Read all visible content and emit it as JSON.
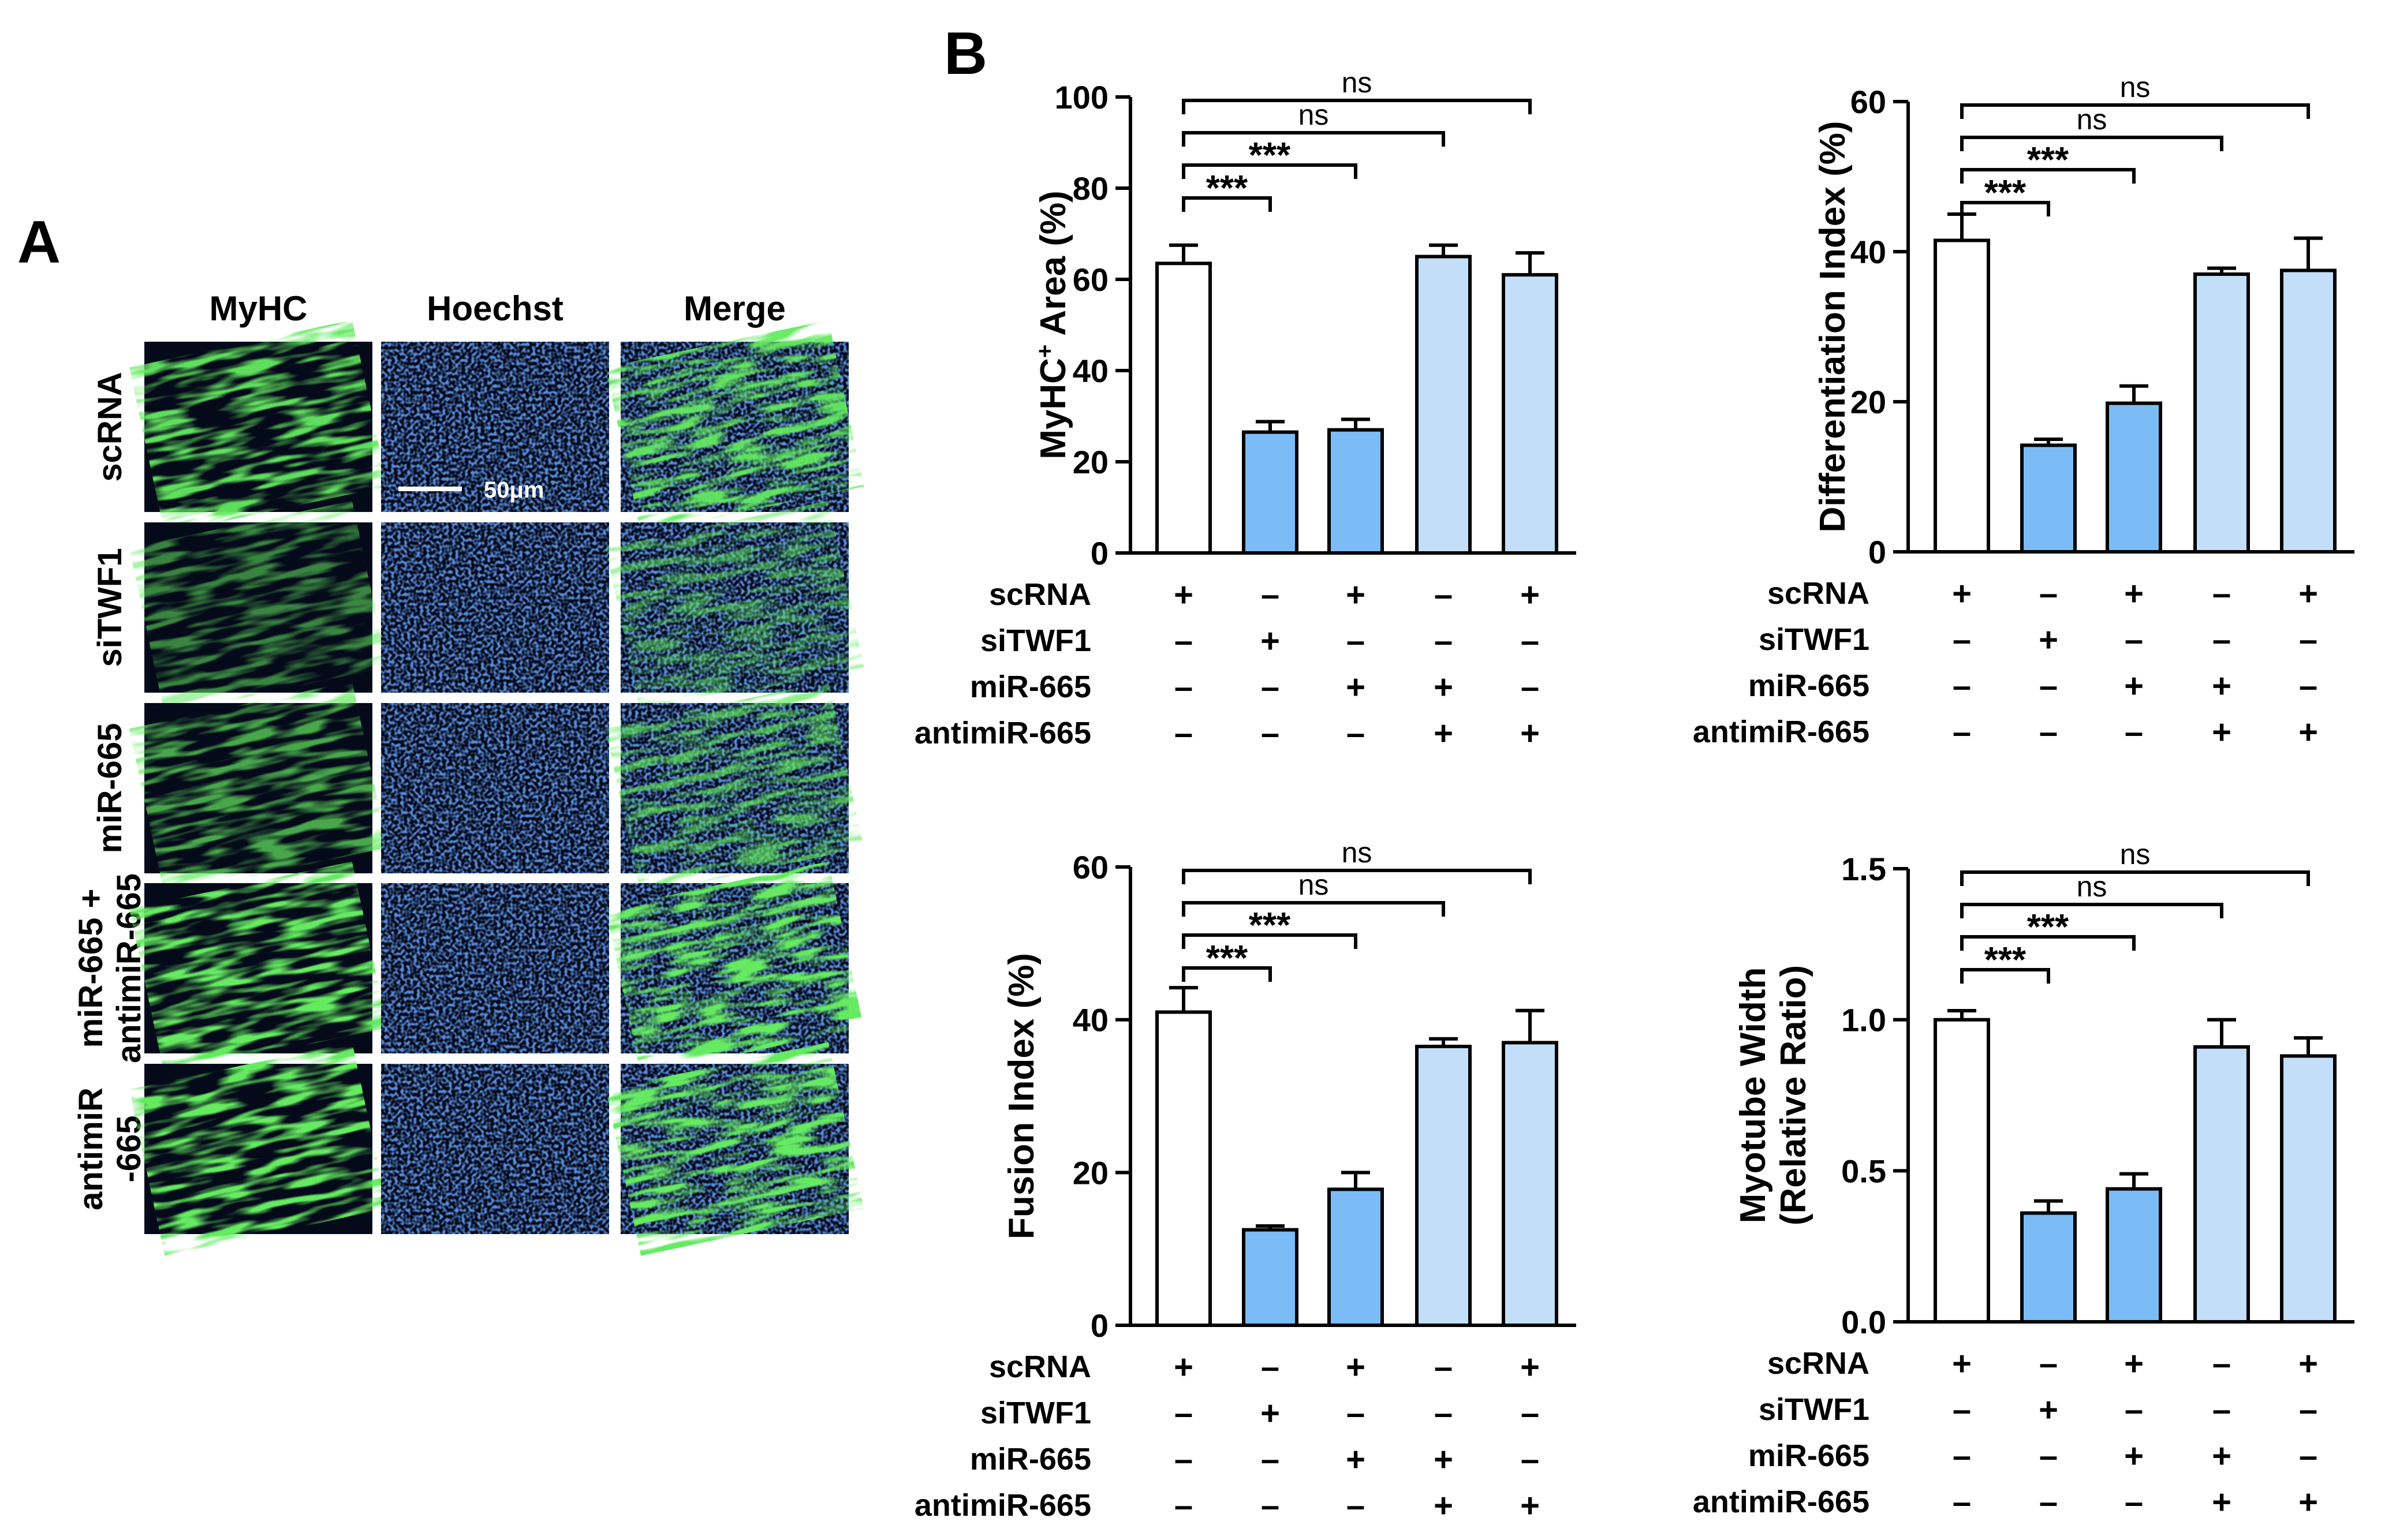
{
  "panel_a": {
    "letter": "A",
    "columns": [
      "MyHC",
      "Hoechst",
      "Merge"
    ],
    "rows": [
      {
        "lines": [
          "scRNA"
        ]
      },
      {
        "lines": [
          "siTWF1"
        ]
      },
      {
        "lines": [
          "miR-665"
        ]
      },
      {
        "lines": [
          "miR-665 +",
          "antimiR-665"
        ]
      },
      {
        "lines": [
          "antimiR",
          "-665"
        ]
      }
    ],
    "scale_bar_label": "50μm",
    "colors": {
      "myhc": "#22c51f",
      "hoechst": "#2a4fc8",
      "background": "#050a1a"
    }
  },
  "panel_b": {
    "letter": "B"
  },
  "conditions": {
    "labels": [
      "scRNA",
      "siTWF1",
      "miR-665",
      "antimiR-665"
    ],
    "signs": [
      [
        "+",
        "–",
        "+",
        "–",
        "+"
      ],
      [
        "–",
        "+",
        "–",
        "–",
        "–"
      ],
      [
        "–",
        "–",
        "+",
        "+",
        "–"
      ],
      [
        "–",
        "–",
        "–",
        "+",
        "+"
      ]
    ]
  },
  "colors": {
    "control": "#ffffff",
    "knockdown": "#7bbcf7",
    "rescue": "#c3def9",
    "stroke": "#000000"
  },
  "chart_data": [
    {
      "type": "bar",
      "ylabel_main": "MyHC",
      "ylabel_sup": "+",
      "ylabel_rest": " Area (%)",
      "ylim": [
        0,
        100
      ],
      "yticks": [
        "0",
        "20",
        "40",
        "60",
        "80",
        "100"
      ],
      "values": [
        63.5,
        26.5,
        27,
        65,
        61
      ],
      "errors": [
        4,
        2.3,
        2.3,
        2.5,
        4.8
      ],
      "bar_colors": [
        "control",
        "knockdown",
        "knockdown",
        "rescue",
        "rescue"
      ],
      "comparisons": [
        {
          "from": 1,
          "to": 2,
          "label": "***"
        },
        {
          "from": 1,
          "to": 3,
          "label": "***"
        },
        {
          "from": 1,
          "to": 4,
          "label": "ns"
        },
        {
          "from": 1,
          "to": 5,
          "label": "ns"
        }
      ]
    },
    {
      "type": "bar",
      "ylabel": "Differentiation Index (%)",
      "ylim": [
        0,
        60
      ],
      "yticks": [
        "0",
        "20",
        "40",
        "60"
      ],
      "values": [
        41.5,
        14.2,
        19.8,
        37,
        37.5
      ],
      "errors": [
        3.5,
        0.8,
        2.3,
        0.8,
        4.3
      ],
      "bar_colors": [
        "control",
        "knockdown",
        "knockdown",
        "rescue",
        "rescue"
      ],
      "comparisons": [
        {
          "from": 1,
          "to": 2,
          "label": "***"
        },
        {
          "from": 1,
          "to": 3,
          "label": "***"
        },
        {
          "from": 1,
          "to": 4,
          "label": "ns"
        },
        {
          "from": 1,
          "to": 5,
          "label": "ns"
        }
      ]
    },
    {
      "type": "bar",
      "ylabel": "Fusion Index (%)",
      "ylim": [
        0,
        60
      ],
      "yticks": [
        "0",
        "20",
        "40",
        "60"
      ],
      "values": [
        41,
        12.5,
        17.8,
        36.5,
        37
      ],
      "errors": [
        3.2,
        0.5,
        2.2,
        1,
        4.2
      ],
      "bar_colors": [
        "control",
        "knockdown",
        "knockdown",
        "rescue",
        "rescue"
      ],
      "comparisons": [
        {
          "from": 1,
          "to": 2,
          "label": "***"
        },
        {
          "from": 1,
          "to": 3,
          "label": "***"
        },
        {
          "from": 1,
          "to": 4,
          "label": "ns"
        },
        {
          "from": 1,
          "to": 5,
          "label": "ns"
        }
      ]
    },
    {
      "type": "bar",
      "ylabel_lines": [
        "Myotube Width",
        "(Relative Ratio)"
      ],
      "ylim": [
        0,
        1.5
      ],
      "yticks": [
        "0.0",
        "0.5",
        "1.0",
        "1.5"
      ],
      "values": [
        1.0,
        0.36,
        0.44,
        0.91,
        0.88
      ],
      "errors": [
        0.03,
        0.04,
        0.05,
        0.09,
        0.06
      ],
      "bar_colors": [
        "control",
        "knockdown",
        "knockdown",
        "rescue",
        "rescue"
      ],
      "comparisons": [
        {
          "from": 1,
          "to": 2,
          "label": "***"
        },
        {
          "from": 1,
          "to": 3,
          "label": "***"
        },
        {
          "from": 1,
          "to": 4,
          "label": "ns"
        },
        {
          "from": 1,
          "to": 5,
          "label": "ns"
        }
      ]
    }
  ]
}
